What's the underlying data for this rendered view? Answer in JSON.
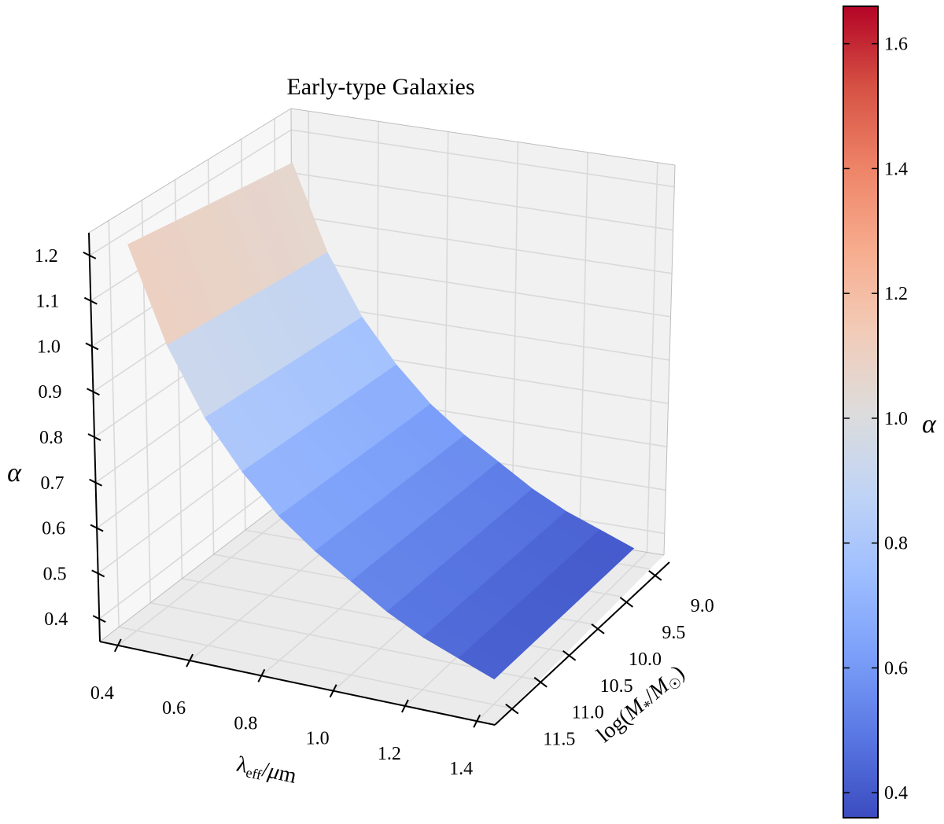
{
  "chart_data": {
    "type": "surface",
    "title": "Early-type Galaxies",
    "xlabel": "λ_eff/μm",
    "ylabel": "log(M*/M☉)",
    "zlabel": "α",
    "x_ticks": [
      "0.4",
      "0.6",
      "0.8",
      "1.0",
      "1.2",
      "1.4"
    ],
    "y_ticks": [
      "9.0",
      "9.5",
      "10.0",
      "10.5",
      "11.0",
      "11.5"
    ],
    "z_ticks": [
      "0.4",
      "0.5",
      "0.6",
      "0.7",
      "0.8",
      "0.9",
      "1.0",
      "1.1",
      "1.2"
    ],
    "xlim": [
      0.35,
      1.45
    ],
    "ylim": [
      8.75,
      11.8
    ],
    "zlim": [
      0.35,
      1.25
    ],
    "surface": {
      "x": [
        0.4,
        0.5,
        0.6,
        0.7,
        0.8,
        0.9,
        1.0,
        1.1,
        1.2,
        1.3,
        1.4
      ],
      "y_range": [
        9.0,
        11.5
      ],
      "alpha": [
        1.18,
        0.98,
        0.84,
        0.74,
        0.66,
        0.6,
        0.55,
        0.5,
        0.46,
        0.43,
        0.4
      ],
      "mass_dependence": "slight, alpha increases with log(M*/M☉)"
    },
    "colorbar": {
      "label": "α",
      "ticks": [
        "0.4",
        "0.6",
        "0.8",
        "1.0",
        "1.2",
        "1.4",
        "1.6"
      ],
      "range": [
        0.36,
        1.66
      ],
      "colormap": "coolwarm",
      "colors": [
        "#3b4cc0",
        "#5977e3",
        "#7b9ff9",
        "#9ebeff",
        "#c0d4f5",
        "#dddcdc",
        "#f2cbb7",
        "#f7ac8e",
        "#ee8468",
        "#d65244",
        "#b40426"
      ]
    },
    "grid": true
  }
}
